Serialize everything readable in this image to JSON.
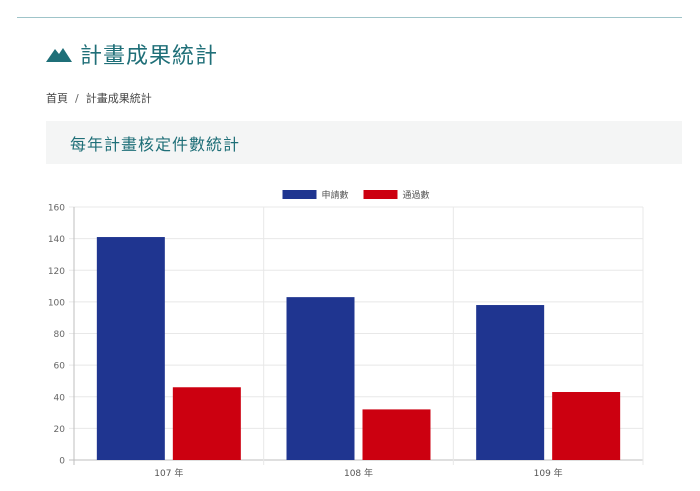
{
  "header": {
    "title": "計畫成果統計"
  },
  "breadcrumb": {
    "home": "首頁",
    "separator": "/",
    "current": "計畫成果統計"
  },
  "section": {
    "title": "每年計畫核定件數統計"
  },
  "colors": {
    "accent": "#1f6f78",
    "series_applied": "#1f3590",
    "series_approved": "#cc0010"
  },
  "chart_data": {
    "type": "bar",
    "categories": [
      "107 年",
      "108 年",
      "109 年"
    ],
    "series": [
      {
        "name": "申請數",
        "values": [
          141,
          103,
          98
        ]
      },
      {
        "name": "通過數",
        "values": [
          46,
          32,
          43
        ]
      }
    ],
    "title": "",
    "xlabel": "",
    "ylabel": "",
    "ylim": [
      0,
      160
    ],
    "yticks": [
      0,
      20,
      40,
      60,
      80,
      100,
      120,
      140,
      160
    ],
    "grid": true,
    "legend": "top-center"
  }
}
